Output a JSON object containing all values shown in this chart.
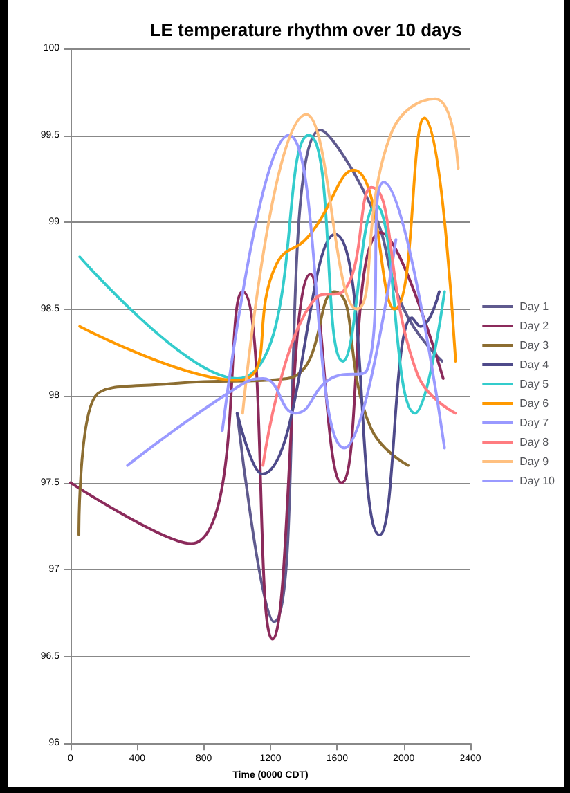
{
  "chart_data": {
    "type": "line",
    "title": "LE temperature rhythm over 10 days",
    "xlabel": "Time (0000 CDT)",
    "xlim": [
      0,
      2400
    ],
    "xticks": [
      0,
      400,
      800,
      1200,
      1600,
      2000,
      2400
    ],
    "ylim": [
      96,
      100
    ],
    "yticks": [
      96,
      96.5,
      97,
      97.5,
      98,
      98.5,
      99,
      99.5,
      100
    ],
    "grid": "y",
    "legend": "right",
    "marker": "none",
    "line_style": "solid",
    "series": [
      {
        "name": "Day 1",
        "color": "#5f5a8e",
        "x": [
          1000,
          1220,
          1500,
          1800,
          2000,
          2230
        ],
        "values": [
          97.9,
          96.7,
          99.53,
          99.1,
          98.5,
          98.2
        ]
      },
      {
        "name": "Day 2",
        "color": "#8b2a5b",
        "x": [
          0,
          724,
          1033,
          1212,
          1440,
          1627,
          1863,
          2237
        ],
        "values": [
          97.5,
          97.15,
          98.6,
          96.6,
          98.7,
          97.5,
          98.94,
          98.1
        ]
      },
      {
        "name": "Day 3",
        "color": "#8c6d31",
        "x": [
          50,
          150,
          600,
          1300,
          1580,
          1800,
          2026
        ],
        "values": [
          97.2,
          98.0,
          98.07,
          98.1,
          98.6,
          97.82,
          97.6
        ]
      },
      {
        "name": "Day 4",
        "color": "#4e4a8a",
        "x": [
          1000,
          1150,
          1587,
          1855,
          2050,
          2100,
          2213
        ],
        "values": [
          97.9,
          97.55,
          98.93,
          97.2,
          98.45,
          98.4,
          98.6
        ]
      },
      {
        "name": "Day 5",
        "color": "#33cccc",
        "x": [
          55,
          1000,
          1430,
          1635,
          1830,
          2067,
          2245
        ],
        "values": [
          98.8,
          98.1,
          99.5,
          98.2,
          99.1,
          97.9,
          98.6
        ]
      },
      {
        "name": "Day 6",
        "color": "#ff9900",
        "x": [
          55,
          1000,
          1237,
          1430,
          1700,
          1945,
          2124,
          2311
        ],
        "values": [
          98.4,
          98.09,
          98.76,
          98.92,
          99.3,
          98.5,
          99.6,
          98.2
        ]
      },
      {
        "name": "Day 7",
        "color": "#9999ff",
        "x": [
          911,
          1310,
          1644,
          1953
        ],
        "values": [
          97.8,
          99.5,
          97.7,
          98.9
        ]
      },
      {
        "name": "Day 8",
        "color": "#ff7c80",
        "x": [
          1155,
          1480,
          1635,
          1806,
          2080,
          2311
        ],
        "values": [
          97.6,
          98.57,
          98.6,
          99.2,
          98.13,
          97.9
        ]
      },
      {
        "name": "Day 9",
        "color": "#ffc080",
        "x": [
          1033,
          1416,
          1717,
          1920,
          2189,
          2327
        ],
        "values": [
          97.9,
          99.62,
          98.5,
          99.5,
          99.71,
          99.31
        ]
      },
      {
        "name": "Day 10",
        "color": "#9a9aff",
        "x": [
          342,
          1000,
          1155,
          1350,
          1562,
          1780,
          1880,
          2245
        ],
        "values": [
          97.6,
          98.05,
          98.1,
          97.9,
          98.1,
          98.15,
          99.23,
          97.7
        ]
      }
    ]
  }
}
